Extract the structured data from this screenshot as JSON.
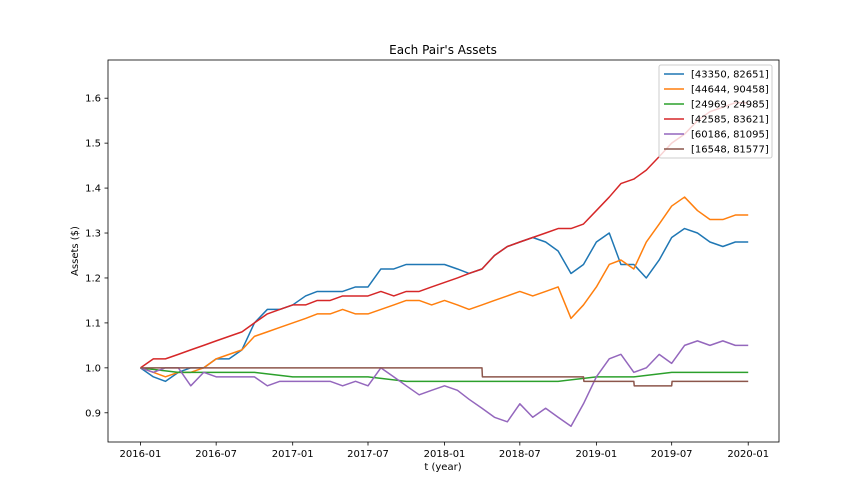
{
  "chart_data": {
    "type": "line",
    "title": "Each Pair's Assets",
    "xlabel": "t (year)",
    "ylabel": "Assets ($)",
    "x_ticks": [
      "2016-01",
      "2016-07",
      "2017-01",
      "2017-07",
      "2018-01",
      "2018-07",
      "2019-01",
      "2019-07",
      "2020-01"
    ],
    "y_ticks": [
      "0.9",
      "1.0",
      "1.1",
      "1.2",
      "1.3",
      "1.4",
      "1.5",
      "1.6"
    ],
    "xlim": [
      "2015-10-15",
      "2020-03-15"
    ],
    "ylim": [
      0.835,
      1.685
    ],
    "grid": false,
    "legend_position": "top-right",
    "series": [
      {
        "name": "[43350, 82651]",
        "color": "#1f77b4",
        "points": [
          [
            "2016-01-01",
            1.0
          ],
          [
            "2016-02-01",
            0.98
          ],
          [
            "2016-03-01",
            0.97
          ],
          [
            "2016-04-01",
            0.99
          ],
          [
            "2016-05-01",
            1.0
          ],
          [
            "2016-06-01",
            1.0
          ],
          [
            "2016-07-01",
            1.02
          ],
          [
            "2016-08-01",
            1.02
          ],
          [
            "2016-09-01",
            1.04
          ],
          [
            "2016-10-01",
            1.1
          ],
          [
            "2016-11-01",
            1.13
          ],
          [
            "2016-12-01",
            1.13
          ],
          [
            "2017-01-01",
            1.14
          ],
          [
            "2017-02-01",
            1.16
          ],
          [
            "2017-03-01",
            1.17
          ],
          [
            "2017-04-01",
            1.17
          ],
          [
            "2017-05-01",
            1.17
          ],
          [
            "2017-06-01",
            1.18
          ],
          [
            "2017-07-01",
            1.18
          ],
          [
            "2017-08-01",
            1.22
          ],
          [
            "2017-09-01",
            1.22
          ],
          [
            "2017-10-01",
            1.23
          ],
          [
            "2017-11-01",
            1.23
          ],
          [
            "2017-12-01",
            1.23
          ],
          [
            "2018-01-01",
            1.23
          ],
          [
            "2018-02-01",
            1.22
          ],
          [
            "2018-03-01",
            1.21
          ],
          [
            "2018-04-01",
            1.22
          ],
          [
            "2018-05-01",
            1.25
          ],
          [
            "2018-06-01",
            1.27
          ],
          [
            "2018-07-01",
            1.28
          ],
          [
            "2018-08-01",
            1.29
          ],
          [
            "2018-09-01",
            1.28
          ],
          [
            "2018-10-01",
            1.26
          ],
          [
            "2018-11-01",
            1.21
          ],
          [
            "2018-12-01",
            1.23
          ],
          [
            "2019-01-01",
            1.28
          ],
          [
            "2019-02-01",
            1.3
          ],
          [
            "2019-03-01",
            1.23
          ],
          [
            "2019-04-01",
            1.23
          ],
          [
            "2019-05-01",
            1.2
          ],
          [
            "2019-06-01",
            1.24
          ],
          [
            "2019-07-01",
            1.29
          ],
          [
            "2019-08-01",
            1.31
          ],
          [
            "2019-09-01",
            1.3
          ],
          [
            "2019-10-01",
            1.28
          ],
          [
            "2019-11-01",
            1.27
          ],
          [
            "2019-12-01",
            1.28
          ],
          [
            "2020-01-01",
            1.28
          ]
        ]
      },
      {
        "name": "[44644, 90458]",
        "color": "#ff7f0e",
        "points": [
          [
            "2016-01-01",
            1.0
          ],
          [
            "2016-02-01",
            0.99
          ],
          [
            "2016-03-01",
            0.98
          ],
          [
            "2016-04-01",
            0.99
          ],
          [
            "2016-05-01",
            0.99
          ],
          [
            "2016-06-01",
            1.0
          ],
          [
            "2016-07-01",
            1.02
          ],
          [
            "2016-08-01",
            1.03
          ],
          [
            "2016-09-01",
            1.04
          ],
          [
            "2016-10-01",
            1.07
          ],
          [
            "2016-11-01",
            1.08
          ],
          [
            "2016-12-01",
            1.09
          ],
          [
            "2017-01-01",
            1.1
          ],
          [
            "2017-02-01",
            1.11
          ],
          [
            "2017-03-01",
            1.12
          ],
          [
            "2017-04-01",
            1.12
          ],
          [
            "2017-05-01",
            1.13
          ],
          [
            "2017-06-01",
            1.12
          ],
          [
            "2017-07-01",
            1.12
          ],
          [
            "2017-08-01",
            1.13
          ],
          [
            "2017-09-01",
            1.14
          ],
          [
            "2017-10-01",
            1.15
          ],
          [
            "2017-11-01",
            1.15
          ],
          [
            "2017-12-01",
            1.14
          ],
          [
            "2018-01-01",
            1.15
          ],
          [
            "2018-02-01",
            1.14
          ],
          [
            "2018-03-01",
            1.13
          ],
          [
            "2018-04-01",
            1.14
          ],
          [
            "2018-05-01",
            1.15
          ],
          [
            "2018-06-01",
            1.16
          ],
          [
            "2018-07-01",
            1.17
          ],
          [
            "2018-08-01",
            1.16
          ],
          [
            "2018-09-01",
            1.17
          ],
          [
            "2018-10-01",
            1.18
          ],
          [
            "2018-11-01",
            1.11
          ],
          [
            "2018-12-01",
            1.14
          ],
          [
            "2019-01-01",
            1.18
          ],
          [
            "2019-02-01",
            1.23
          ],
          [
            "2019-03-01",
            1.24
          ],
          [
            "2019-04-01",
            1.22
          ],
          [
            "2019-05-01",
            1.28
          ],
          [
            "2019-06-01",
            1.32
          ],
          [
            "2019-07-01",
            1.36
          ],
          [
            "2019-08-01",
            1.38
          ],
          [
            "2019-09-01",
            1.35
          ],
          [
            "2019-10-01",
            1.33
          ],
          [
            "2019-11-01",
            1.33
          ],
          [
            "2019-12-01",
            1.34
          ],
          [
            "2020-01-01",
            1.34
          ]
        ]
      },
      {
        "name": "[24969, 24985]",
        "color": "#2ca02c",
        "points": [
          [
            "2016-01-01",
            1.0
          ],
          [
            "2016-04-01",
            0.99
          ],
          [
            "2016-07-01",
            0.99
          ],
          [
            "2016-10-01",
            0.99
          ],
          [
            "2017-01-01",
            0.98
          ],
          [
            "2017-04-01",
            0.98
          ],
          [
            "2017-07-01",
            0.98
          ],
          [
            "2017-10-01",
            0.97
          ],
          [
            "2018-01-01",
            0.97
          ],
          [
            "2018-04-01",
            0.97
          ],
          [
            "2018-07-01",
            0.97
          ],
          [
            "2018-10-01",
            0.97
          ],
          [
            "2019-01-01",
            0.98
          ],
          [
            "2019-04-01",
            0.98
          ],
          [
            "2019-07-01",
            0.99
          ],
          [
            "2019-10-01",
            0.99
          ],
          [
            "2020-01-01",
            0.99
          ]
        ]
      },
      {
        "name": "[42585, 83621]",
        "color": "#d62728",
        "points": [
          [
            "2016-01-01",
            1.0
          ],
          [
            "2016-02-01",
            1.02
          ],
          [
            "2016-03-01",
            1.02
          ],
          [
            "2016-04-01",
            1.03
          ],
          [
            "2016-05-01",
            1.04
          ],
          [
            "2016-06-01",
            1.05
          ],
          [
            "2016-07-01",
            1.06
          ],
          [
            "2016-08-01",
            1.07
          ],
          [
            "2016-09-01",
            1.08
          ],
          [
            "2016-10-01",
            1.1
          ],
          [
            "2016-11-01",
            1.12
          ],
          [
            "2016-12-01",
            1.13
          ],
          [
            "2017-01-01",
            1.14
          ],
          [
            "2017-02-01",
            1.14
          ],
          [
            "2017-03-01",
            1.15
          ],
          [
            "2017-04-01",
            1.15
          ],
          [
            "2017-05-01",
            1.16
          ],
          [
            "2017-06-01",
            1.16
          ],
          [
            "2017-07-01",
            1.16
          ],
          [
            "2017-08-01",
            1.17
          ],
          [
            "2017-09-01",
            1.16
          ],
          [
            "2017-10-01",
            1.17
          ],
          [
            "2017-11-01",
            1.17
          ],
          [
            "2017-12-01",
            1.18
          ],
          [
            "2018-01-01",
            1.19
          ],
          [
            "2018-02-01",
            1.2
          ],
          [
            "2018-03-01",
            1.21
          ],
          [
            "2018-04-01",
            1.22
          ],
          [
            "2018-05-01",
            1.25
          ],
          [
            "2018-06-01",
            1.27
          ],
          [
            "2018-07-01",
            1.28
          ],
          [
            "2018-08-01",
            1.29
          ],
          [
            "2018-09-01",
            1.3
          ],
          [
            "2018-10-01",
            1.31
          ],
          [
            "2018-11-01",
            1.31
          ],
          [
            "2018-12-01",
            1.32
          ],
          [
            "2019-01-01",
            1.35
          ],
          [
            "2019-02-01",
            1.38
          ],
          [
            "2019-03-01",
            1.41
          ],
          [
            "2019-04-01",
            1.42
          ],
          [
            "2019-05-01",
            1.44
          ],
          [
            "2019-06-01",
            1.47
          ],
          [
            "2019-07-01",
            1.5
          ],
          [
            "2019-08-01",
            1.52
          ],
          [
            "2019-09-01",
            1.55
          ],
          [
            "2019-10-01",
            1.57
          ],
          [
            "2019-11-01",
            1.58
          ],
          [
            "2019-12-01",
            1.59
          ],
          [
            "2020-01-01",
            1.59
          ]
        ]
      },
      {
        "name": "[60186, 81095]",
        "color": "#9467bd",
        "points": [
          [
            "2016-01-01",
            1.0
          ],
          [
            "2016-02-01",
            0.99
          ],
          [
            "2016-03-01",
            1.0
          ],
          [
            "2016-04-01",
            1.0
          ],
          [
            "2016-05-01",
            0.96
          ],
          [
            "2016-06-01",
            0.99
          ],
          [
            "2016-07-01",
            0.98
          ],
          [
            "2016-08-01",
            0.98
          ],
          [
            "2016-09-01",
            0.98
          ],
          [
            "2016-10-01",
            0.98
          ],
          [
            "2016-11-01",
            0.96
          ],
          [
            "2016-12-01",
            0.97
          ],
          [
            "2017-01-01",
            0.97
          ],
          [
            "2017-02-01",
            0.97
          ],
          [
            "2017-03-01",
            0.97
          ],
          [
            "2017-04-01",
            0.97
          ],
          [
            "2017-05-01",
            0.96
          ],
          [
            "2017-06-01",
            0.97
          ],
          [
            "2017-07-01",
            0.96
          ],
          [
            "2017-08-01",
            1.0
          ],
          [
            "2017-09-01",
            0.98
          ],
          [
            "2017-10-01",
            0.96
          ],
          [
            "2017-11-01",
            0.94
          ],
          [
            "2017-12-01",
            0.95
          ],
          [
            "2018-01-01",
            0.96
          ],
          [
            "2018-02-01",
            0.95
          ],
          [
            "2018-03-01",
            0.93
          ],
          [
            "2018-04-01",
            0.91
          ],
          [
            "2018-05-01",
            0.89
          ],
          [
            "2018-06-01",
            0.88
          ],
          [
            "2018-07-01",
            0.92
          ],
          [
            "2018-08-01",
            0.89
          ],
          [
            "2018-09-01",
            0.91
          ],
          [
            "2018-10-01",
            0.89
          ],
          [
            "2018-11-01",
            0.87
          ],
          [
            "2018-12-01",
            0.92
          ],
          [
            "2019-01-01",
            0.98
          ],
          [
            "2019-02-01",
            1.02
          ],
          [
            "2019-03-01",
            1.03
          ],
          [
            "2019-04-01",
            0.99
          ],
          [
            "2019-05-01",
            1.0
          ],
          [
            "2019-06-01",
            1.03
          ],
          [
            "2019-07-01",
            1.01
          ],
          [
            "2019-08-01",
            1.05
          ],
          [
            "2019-09-01",
            1.06
          ],
          [
            "2019-10-01",
            1.05
          ],
          [
            "2019-11-01",
            1.06
          ],
          [
            "2019-12-01",
            1.05
          ],
          [
            "2020-01-01",
            1.05
          ]
        ]
      },
      {
        "name": "[16548, 81577]",
        "color": "#8c564b",
        "points": [
          [
            "2016-01-01",
            1.0
          ],
          [
            "2016-06-01",
            1.0
          ],
          [
            "2016-06-02",
            1.0
          ],
          [
            "2017-06-01",
            1.0
          ],
          [
            "2018-01-01",
            1.0
          ],
          [
            "2018-04-01",
            1.0
          ],
          [
            "2018-04-02",
            0.98
          ],
          [
            "2018-12-01",
            0.98
          ],
          [
            "2018-12-02",
            0.97
          ],
          [
            "2019-04-01",
            0.97
          ],
          [
            "2019-04-02",
            0.96
          ],
          [
            "2019-07-01",
            0.96
          ],
          [
            "2019-07-02",
            0.97
          ],
          [
            "2020-01-01",
            0.97
          ]
        ]
      }
    ]
  }
}
